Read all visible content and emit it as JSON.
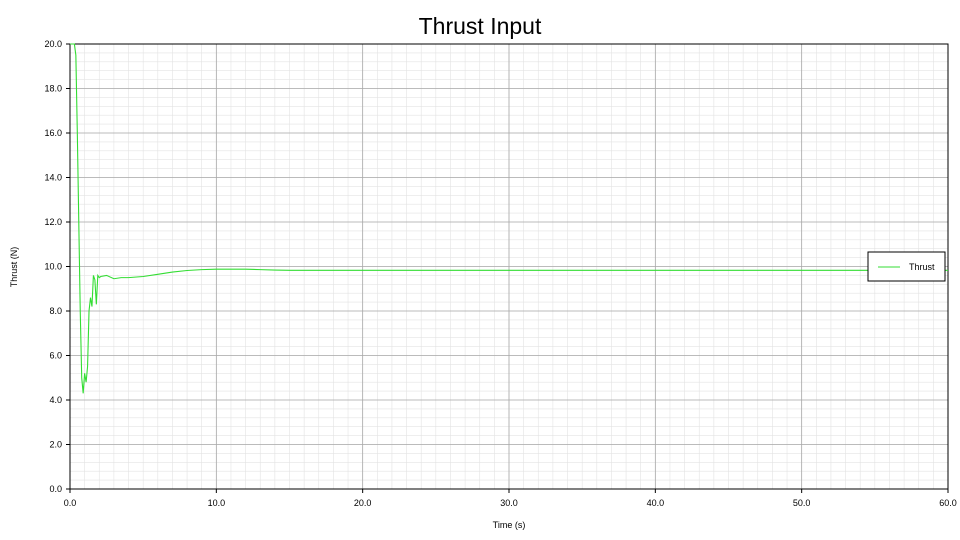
{
  "chart_data": {
    "type": "line",
    "title": "Thrust Input",
    "xlabel": "Time (s)",
    "ylabel": "Thrust (N)",
    "xlim": [
      0,
      60
    ],
    "ylim": [
      0,
      20
    ],
    "x_ticks": [
      "0.0",
      "10.0",
      "20.0",
      "30.0",
      "40.0",
      "50.0",
      "60.0"
    ],
    "y_ticks": [
      "0.0",
      "2.0",
      "4.0",
      "6.0",
      "8.0",
      "10.0",
      "12.0",
      "14.0",
      "16.0",
      "18.0",
      "20.0"
    ],
    "grid": true,
    "legend_position": "right",
    "series": [
      {
        "name": "Thrust",
        "color": "#33dd33",
        "x": [
          0,
          0.3,
          0.4,
          0.5,
          0.6,
          0.7,
          0.8,
          0.9,
          1.0,
          1.1,
          1.2,
          1.3,
          1.4,
          1.5,
          1.6,
          1.7,
          1.8,
          1.9,
          2.0,
          2.1,
          2.5,
          3.0,
          3.5,
          4.0,
          5.0,
          6.0,
          7.0,
          8.0,
          9.0,
          10.0,
          11.0,
          12.0,
          13.0,
          14.0,
          15.0,
          20.0,
          30.0,
          40.0,
          50.0,
          60.0
        ],
        "y": [
          20.0,
          20.0,
          19.5,
          16.0,
          12.0,
          8.0,
          5.0,
          4.3,
          5.2,
          4.8,
          5.5,
          8.0,
          8.6,
          8.2,
          9.6,
          9.4,
          8.3,
          9.6,
          9.5,
          9.55,
          9.6,
          9.45,
          9.5,
          9.5,
          9.55,
          9.65,
          9.75,
          9.82,
          9.86,
          9.88,
          9.88,
          9.88,
          9.86,
          9.84,
          9.83,
          9.83,
          9.83,
          9.83,
          9.83,
          9.83
        ]
      }
    ]
  }
}
